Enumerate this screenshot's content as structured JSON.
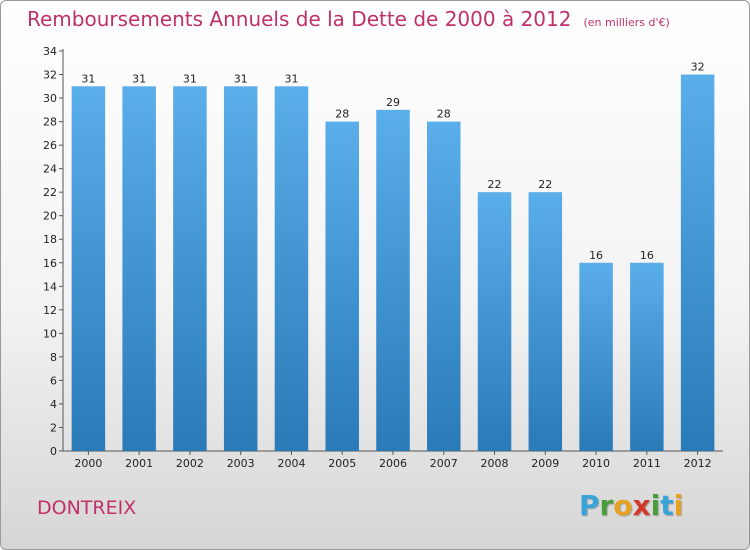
{
  "header": {
    "title": "Remboursements Annuels de la Dette de 2000 à 2012",
    "unit": "(en milliers d'€)"
  },
  "footer": {
    "commune": "DONTREIX",
    "logo_letters": [
      {
        "char": "P",
        "color": "#3aa3d8"
      },
      {
        "char": "r",
        "color": "#4a9d3a"
      },
      {
        "char": "o",
        "color": "#e8a020"
      },
      {
        "char": "x",
        "color": "#d43a2a"
      },
      {
        "char": "i",
        "color": "#4a9d3a"
      },
      {
        "char": "t",
        "color": "#3aa3d8"
      },
      {
        "char": "i",
        "color": "#e8a020"
      }
    ]
  },
  "chart_data": {
    "type": "bar",
    "categories": [
      "2000",
      "2001",
      "2002",
      "2003",
      "2004",
      "2005",
      "2006",
      "2007",
      "2008",
      "2009",
      "2010",
      "2011",
      "2012"
    ],
    "values": [
      31,
      31,
      31,
      31,
      31,
      28,
      29,
      28,
      22,
      22,
      16,
      16,
      32
    ],
    "ylim": [
      0,
      34
    ],
    "ytick_step": 2,
    "grid": false,
    "bar_color_top": "#5aaeea",
    "bar_color_bottom": "#2a7ab8",
    "axis_color": "#555555"
  }
}
